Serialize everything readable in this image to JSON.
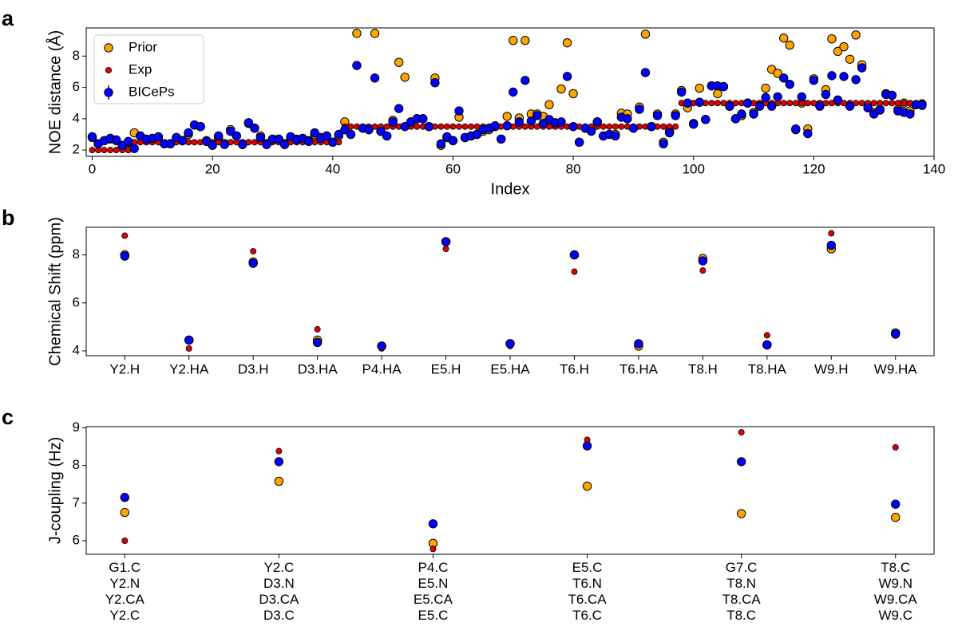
{
  "chart_data": [
    {
      "type": "scatter",
      "panel_label": "a",
      "ylabel": "NOE distance (Å)",
      "xlabel": "Index",
      "x": [
        0,
        1,
        2,
        3,
        4,
        5,
        6,
        7,
        8,
        9,
        10,
        11,
        12,
        13,
        14,
        15,
        16,
        17,
        18,
        19,
        20,
        21,
        22,
        23,
        24,
        25,
        26,
        27,
        28,
        29,
        30,
        31,
        32,
        33,
        34,
        35,
        36,
        37,
        38,
        39,
        40,
        41,
        42,
        43,
        44,
        45,
        46,
        47,
        48,
        49,
        50,
        51,
        52,
        53,
        54,
        55,
        56,
        57,
        58,
        59,
        60,
        61,
        62,
        63,
        64,
        65,
        66,
        67,
        68,
        69,
        70,
        71,
        72,
        73,
        74,
        75,
        76,
        77,
        78,
        79,
        80,
        81,
        82,
        83,
        84,
        85,
        86,
        87,
        88,
        89,
        90,
        91,
        92,
        93,
        94,
        95,
        96,
        97,
        98,
        99,
        100,
        101,
        102,
        103,
        104,
        105,
        106,
        107,
        108,
        109,
        110,
        111,
        112,
        113,
        114,
        115,
        116,
        117,
        118,
        119,
        120,
        121,
        122,
        123,
        124,
        125,
        126,
        127,
        128,
        129,
        130,
        131,
        132,
        133,
        134,
        135,
        136,
        137,
        138
      ],
      "xlim": [
        -1,
        140
      ],
      "xticks": [
        0,
        20,
        40,
        60,
        80,
        100,
        120,
        140
      ],
      "ylim": [
        1.6,
        9.8
      ],
      "yticks": [
        2,
        4,
        6,
        8
      ],
      "legend": "upper left",
      "series": [
        {
          "name": "Prior",
          "color": "#ffa500",
          "values": [
            2.8,
            2.4,
            2.6,
            2.7,
            2.6,
            2.2,
            2.5,
            3.1,
            2.9,
            2.6,
            2.7,
            2.8,
            2.4,
            2.4,
            2.8,
            2.6,
            3.0,
            3.6,
            3.5,
            2.6,
            2.4,
            2.8,
            2.4,
            3.3,
            2.9,
            2.4,
            3.7,
            3.4,
            2.9,
            2.4,
            2.7,
            2.7,
            2.4,
            2.8,
            2.7,
            2.7,
            2.6,
            3.0,
            2.8,
            2.9,
            2.5,
            2.9,
            3.8,
            3.0,
            9.45,
            3.4,
            3.3,
            9.45,
            3.2,
            2.9,
            3.9,
            7.6,
            6.65,
            3.8,
            4.0,
            4.0,
            3.5,
            6.6,
            2.3,
            2.8,
            2.6,
            4.1,
            2.8,
            2.9,
            3.0,
            3.2,
            3.3,
            3.5,
            2.7,
            4.15,
            9.0,
            4.05,
            9.0,
            4.3,
            4.3,
            4.15,
            4.9,
            3.6,
            5.9,
            8.85,
            5.6,
            2.5,
            3.4,
            3.3,
            3.8,
            2.9,
            3.0,
            3.0,
            4.35,
            4.3,
            3.4,
            4.75,
            9.4,
            3.5,
            4.3,
            2.5,
            3.2,
            4.3,
            5.8,
            4.7,
            3.7,
            5.95,
            3.95,
            6.1,
            5.6,
            6.05,
            4.8,
            4.0,
            4.2,
            5.0,
            4.4,
            4.9,
            5.95,
            7.15,
            6.9,
            9.15,
            8.7,
            3.3,
            5.0,
            3.35,
            6.55,
            4.9,
            5.85,
            9.1,
            8.3,
            8.6,
            7.8,
            9.35,
            7.45,
            4.7,
            4.4,
            4.6,
            5.6,
            5.5,
            4.6,
            5.0,
            4.5,
            4.9,
            4.95
          ]
        },
        {
          "name": "Exp",
          "color": "#e00000",
          "values": [
            2,
            2,
            2,
            2,
            2,
            2,
            2,
            2.5,
            2.5,
            2.5,
            2.5,
            2.5,
            2.5,
            2.5,
            2.5,
            2.5,
            2.5,
            2.5,
            2.5,
            2.5,
            2.5,
            2.5,
            2.5,
            2.5,
            2.5,
            2.5,
            2.5,
            2.5,
            2.5,
            2.5,
            2.5,
            2.5,
            2.5,
            2.5,
            2.5,
            2.5,
            2.5,
            2.5,
            2.5,
            2.5,
            2.5,
            2.5,
            3.5,
            3.5,
            3.5,
            3.5,
            3.5,
            3.5,
            3.5,
            3.5,
            3.5,
            3.5,
            3.5,
            3.5,
            3.5,
            3.5,
            3.5,
            3.5,
            3.5,
            3.5,
            3.5,
            3.5,
            3.5,
            3.5,
            3.5,
            3.5,
            3.5,
            3.5,
            3.5,
            3.5,
            3.5,
            3.5,
            3.5,
            3.5,
            3.5,
            3.5,
            3.5,
            3.5,
            3.5,
            3.5,
            3.5,
            3.5,
            3.5,
            3.5,
            3.5,
            3.5,
            3.5,
            3.5,
            3.5,
            3.5,
            3.5,
            3.5,
            3.5,
            3.5,
            3.5,
            3.5,
            3.5,
            3.5,
            5,
            5,
            5,
            5,
            5,
            5,
            5,
            5,
            5,
            5,
            5,
            5,
            5,
            5,
            5,
            5,
            5,
            5,
            5,
            5,
            5,
            5,
            5,
            5,
            5,
            5,
            5,
            5,
            5,
            5,
            5,
            5,
            5,
            5,
            5,
            5,
            5,
            5,
            5,
            5,
            5
          ]
        },
        {
          "name": "BICePs",
          "color": "#0000ff",
          "values": [
            2.85,
            2.4,
            2.6,
            2.75,
            2.65,
            2.3,
            2.55,
            2.1,
            2.9,
            2.7,
            2.75,
            2.85,
            2.4,
            2.4,
            2.8,
            2.6,
            3.1,
            3.6,
            3.5,
            2.55,
            2.3,
            2.9,
            2.35,
            3.2,
            2.9,
            2.35,
            3.75,
            3.4,
            2.8,
            2.35,
            2.7,
            2.7,
            2.35,
            2.85,
            2.65,
            2.75,
            2.55,
            3.1,
            2.75,
            2.9,
            2.5,
            3.0,
            3.3,
            3.0,
            7.4,
            3.4,
            3.3,
            6.6,
            3.2,
            2.9,
            3.8,
            4.65,
            3.5,
            3.8,
            4.0,
            4.0,
            3.5,
            6.3,
            2.4,
            2.85,
            2.6,
            4.5,
            2.8,
            2.9,
            3.0,
            3.3,
            3.4,
            3.55,
            2.7,
            3.55,
            5.7,
            3.8,
            6.45,
            3.85,
            4.2,
            3.7,
            3.95,
            3.75,
            3.8,
            6.7,
            3.5,
            2.5,
            3.4,
            3.2,
            3.8,
            2.9,
            3.0,
            2.9,
            4.1,
            4.0,
            3.4,
            4.6,
            6.95,
            3.5,
            4.2,
            2.4,
            3.1,
            4.2,
            5.7,
            5.0,
            3.65,
            5.05,
            3.95,
            6.1,
            6.1,
            6.05,
            4.8,
            4.0,
            4.3,
            5.0,
            4.3,
            4.8,
            5.35,
            4.8,
            5.4,
            6.6,
            6.2,
            3.35,
            5.4,
            3.05,
            6.45,
            4.8,
            5.55,
            6.75,
            5.2,
            6.7,
            4.8,
            6.5,
            7.25,
            4.7,
            4.3,
            4.55,
            5.55,
            5.5,
            4.5,
            4.4,
            4.3,
            4.9,
            4.85
          ]
        }
      ]
    },
    {
      "type": "scatter",
      "panel_label": "b",
      "ylabel": "Chemical Shift (ppm)",
      "categories": [
        "Y2.H",
        "Y2.HA",
        "D3.H",
        "D3.HA",
        "P4.HA",
        "E5.H",
        "E5.HA",
        "T6.H",
        "T6.HA",
        "T8.H",
        "T8.HA",
        "W9.H",
        "W9.HA"
      ],
      "ylim": [
        3.8,
        9.15
      ],
      "yticks": [
        4,
        6,
        8
      ],
      "series": [
        {
          "name": "Prior",
          "color": "#ffa500",
          "values": [
            8.0,
            4.45,
            7.7,
            4.45,
            4.2,
            8.55,
            4.3,
            8.0,
            4.2,
            7.85,
            4.25,
            8.25,
            4.75
          ]
        },
        {
          "name": "Exp",
          "color": "#e00000",
          "values": [
            8.8,
            4.1,
            8.15,
            4.9,
            4.1,
            8.25,
            4.2,
            7.3,
            4.3,
            7.35,
            4.65,
            8.9,
            4.75
          ]
        },
        {
          "name": "BICePs",
          "color": "#0000ff",
          "values": [
            7.95,
            4.45,
            7.65,
            4.35,
            4.2,
            8.55,
            4.3,
            8.0,
            4.3,
            7.75,
            4.25,
            8.4,
            4.7
          ]
        }
      ]
    },
    {
      "type": "scatter",
      "panel_label": "c",
      "ylabel": "J-coupling (Hz)",
      "categories": [
        "G1.C\nY2.N\nY2.CA\nY2.C",
        "Y2.C\nD3.N\nD3.CA\nD3.C",
        "P4.C\nE5.N\nE5.CA\nE5.C",
        "E5.C\nT6.N\nT6.CA\nT6.C",
        "G7.C\nT8.N\nT8.CA\nT8.C",
        "T8.C\nW9.N\nW9.CA\nW9.C"
      ],
      "ylim": [
        5.64,
        9.03
      ],
      "yticks": [
        6,
        7,
        8,
        9
      ],
      "series": [
        {
          "name": "Prior",
          "color": "#ffa500",
          "values": [
            6.75,
            7.58,
            5.93,
            7.45,
            6.72,
            6.62
          ]
        },
        {
          "name": "Exp",
          "color": "#e00000",
          "values": [
            6.0,
            8.38,
            5.78,
            8.68,
            8.88,
            8.48
          ]
        },
        {
          "name": "BICePs",
          "color": "#0000ff",
          "values": [
            7.15,
            8.1,
            6.45,
            8.52,
            8.1,
            6.97
          ]
        }
      ]
    }
  ]
}
